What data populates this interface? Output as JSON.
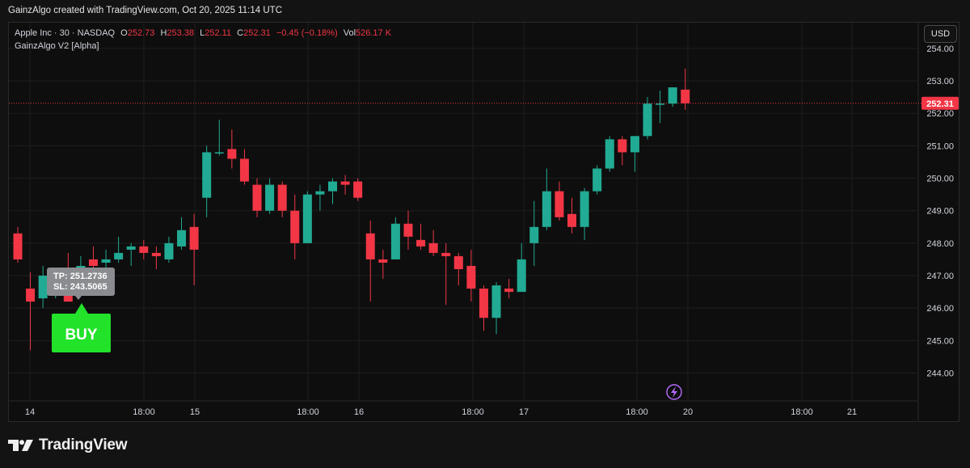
{
  "header": {
    "created_line": "GainzAlgo created with TradingView.com, Oct 20, 2025 11:14 UTC"
  },
  "legend": {
    "symbol": "Apple Inc · 30 · NASDAQ",
    "open_label": "O",
    "open": "252.73",
    "high_label": "H",
    "high": "253.38",
    "low_label": "L",
    "low": "252.11",
    "close_label": "C",
    "close": "252.31",
    "change": "−0.45 (−0.18%)",
    "vol_label": "Vol",
    "vol": "526.17 K",
    "indicator": "GainzAlgo V2 [Alpha]"
  },
  "currency_button": "USD",
  "brand": {
    "name": "TradingView"
  },
  "colors": {
    "up": "#22ab94",
    "down": "#f23645",
    "signal": "#22e22a",
    "background": "#0e0e0e",
    "price_line": "#f23645"
  },
  "chart_data": {
    "type": "candlestick",
    "y_axis": {
      "ticks": [
        244.0,
        245.0,
        246.0,
        247.0,
        248.0,
        249.0,
        250.0,
        251.0,
        252.0,
        253.0,
        254.0
      ],
      "range": [
        243.4,
        254.2
      ]
    },
    "x_axis": {
      "ticks": [
        "14",
        "18:00",
        "15",
        "18:00",
        "16",
        "18:00",
        "17",
        "18:00",
        "20",
        "18:00",
        "21"
      ]
    },
    "last_price": 252.31,
    "candles": [
      {
        "o": 248.3,
        "h": 248.5,
        "l": 247.4,
        "c": 247.5
      },
      {
        "o": 246.6,
        "h": 247.1,
        "l": 244.7,
        "c": 246.2
      },
      {
        "o": 246.3,
        "h": 247.3,
        "l": 246.0,
        "c": 247.0
      },
      {
        "o": 246.6,
        "h": 247.2,
        "l": 246.3,
        "c": 246.8
      },
      {
        "o": 246.6,
        "h": 247.7,
        "l": 246.2,
        "c": 246.2
      },
      {
        "o": 247.2,
        "h": 247.6,
        "l": 246.8,
        "c": 247.3
      },
      {
        "o": 247.5,
        "h": 247.9,
        "l": 247.1,
        "c": 247.3
      },
      {
        "o": 247.4,
        "h": 247.8,
        "l": 247.2,
        "c": 247.5
      },
      {
        "o": 247.5,
        "h": 248.2,
        "l": 247.4,
        "c": 247.7
      },
      {
        "o": 247.8,
        "h": 248.0,
        "l": 247.3,
        "c": 247.9
      },
      {
        "o": 247.9,
        "h": 248.1,
        "l": 247.5,
        "c": 247.7
      },
      {
        "o": 247.7,
        "h": 247.9,
        "l": 247.2,
        "c": 247.6
      },
      {
        "o": 247.5,
        "h": 248.2,
        "l": 247.4,
        "c": 248.0
      },
      {
        "o": 247.9,
        "h": 248.8,
        "l": 247.8,
        "c": 248.4
      },
      {
        "o": 248.5,
        "h": 248.9,
        "l": 246.7,
        "c": 247.8
      },
      {
        "o": 249.4,
        "h": 251.0,
        "l": 248.8,
        "c": 250.8
      },
      {
        "o": 250.8,
        "h": 251.8,
        "l": 250.7,
        "c": 250.8
      },
      {
        "o": 250.9,
        "h": 251.5,
        "l": 250.3,
        "c": 250.6
      },
      {
        "o": 250.6,
        "h": 250.9,
        "l": 249.8,
        "c": 249.9
      },
      {
        "o": 249.8,
        "h": 250.0,
        "l": 248.8,
        "c": 249.0
      },
      {
        "o": 249.0,
        "h": 250.0,
        "l": 248.9,
        "c": 249.8
      },
      {
        "o": 249.8,
        "h": 249.9,
        "l": 248.8,
        "c": 249.0
      },
      {
        "o": 249.0,
        "h": 249.5,
        "l": 247.5,
        "c": 248.0
      },
      {
        "o": 248.0,
        "h": 249.6,
        "l": 248.0,
        "c": 249.5
      },
      {
        "o": 249.5,
        "h": 249.8,
        "l": 249.0,
        "c": 249.6
      },
      {
        "o": 249.6,
        "h": 250.0,
        "l": 249.2,
        "c": 249.9
      },
      {
        "o": 249.9,
        "h": 250.1,
        "l": 249.5,
        "c": 249.8
      },
      {
        "o": 249.9,
        "h": 250.0,
        "l": 249.3,
        "c": 249.4
      },
      {
        "o": 248.3,
        "h": 248.7,
        "l": 246.2,
        "c": 247.5
      },
      {
        "o": 247.5,
        "h": 247.8,
        "l": 246.9,
        "c": 247.4
      },
      {
        "o": 247.5,
        "h": 248.8,
        "l": 247.5,
        "c": 248.6
      },
      {
        "o": 248.6,
        "h": 249.0,
        "l": 247.8,
        "c": 248.2
      },
      {
        "o": 248.1,
        "h": 248.6,
        "l": 247.8,
        "c": 247.9
      },
      {
        "o": 248.0,
        "h": 248.4,
        "l": 247.6,
        "c": 247.7
      },
      {
        "o": 247.7,
        "h": 248.0,
        "l": 246.1,
        "c": 247.6
      },
      {
        "o": 247.6,
        "h": 247.7,
        "l": 246.7,
        "c": 247.2
      },
      {
        "o": 247.3,
        "h": 247.8,
        "l": 246.2,
        "c": 246.6
      },
      {
        "o": 246.6,
        "h": 246.7,
        "l": 245.3,
        "c": 245.7
      },
      {
        "o": 245.7,
        "h": 246.8,
        "l": 245.2,
        "c": 246.7
      },
      {
        "o": 246.6,
        "h": 246.9,
        "l": 246.3,
        "c": 246.5
      },
      {
        "o": 246.5,
        "h": 248.0,
        "l": 246.5,
        "c": 247.5
      },
      {
        "o": 248.0,
        "h": 249.3,
        "l": 247.3,
        "c": 248.5
      },
      {
        "o": 248.5,
        "h": 250.3,
        "l": 248.4,
        "c": 249.6
      },
      {
        "o": 249.6,
        "h": 249.9,
        "l": 248.7,
        "c": 248.8
      },
      {
        "o": 248.9,
        "h": 249.4,
        "l": 248.3,
        "c": 248.5
      },
      {
        "o": 248.5,
        "h": 249.7,
        "l": 248.1,
        "c": 249.6
      },
      {
        "o": 249.6,
        "h": 250.4,
        "l": 249.5,
        "c": 250.3
      },
      {
        "o": 250.3,
        "h": 251.3,
        "l": 250.2,
        "c": 251.2
      },
      {
        "o": 251.2,
        "h": 251.3,
        "l": 250.4,
        "c": 250.8
      },
      {
        "o": 250.8,
        "h": 251.3,
        "l": 250.2,
        "c": 251.3
      },
      {
        "o": 251.3,
        "h": 252.5,
        "l": 251.2,
        "c": 252.3
      },
      {
        "o": 252.3,
        "h": 252.7,
        "l": 251.7,
        "c": 252.3
      },
      {
        "o": 252.3,
        "h": 252.8,
        "l": 252.2,
        "c": 252.8
      },
      {
        "o": 252.73,
        "h": 253.38,
        "l": 252.11,
        "c": 252.31
      }
    ],
    "signal": {
      "label": "BUY",
      "tp": "TP: 251.2736",
      "sl": "SL: 243.5065"
    }
  }
}
